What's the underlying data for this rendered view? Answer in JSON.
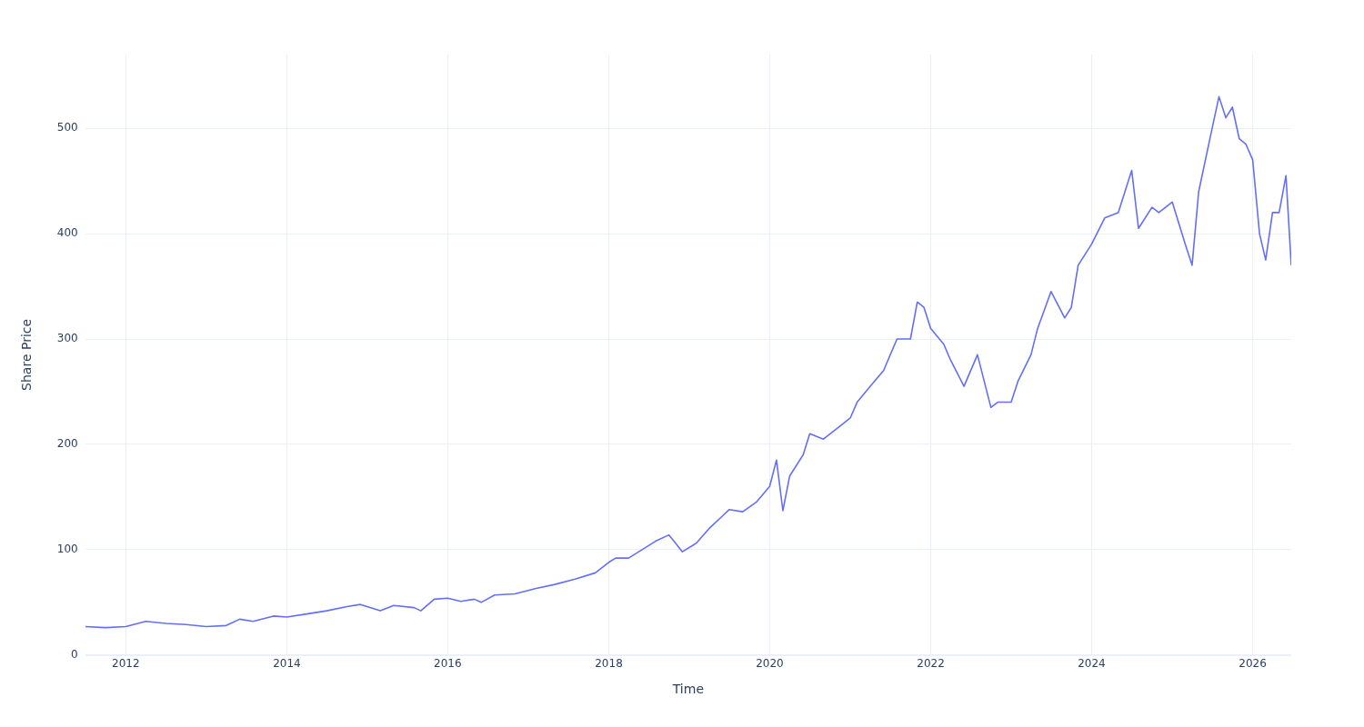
{
  "chart_data": {
    "type": "line",
    "xlabel": "Time",
    "ylabel": "Share Price",
    "x": [
      "2011-07",
      "2011-10",
      "2012-01",
      "2012-04",
      "2012-07",
      "2012-10",
      "2013-01",
      "2013-04",
      "2013-06",
      "2013-08",
      "2013-11",
      "2014-01",
      "2014-04",
      "2014-07",
      "2014-10",
      "2014-12",
      "2015-03",
      "2015-05",
      "2015-08",
      "2015-09",
      "2015-11",
      "2016-01",
      "2016-03",
      "2016-05",
      "2016-06",
      "2016-08",
      "2016-11",
      "2017-02",
      "2017-05",
      "2017-08",
      "2017-11",
      "2018-01",
      "2018-02",
      "2018-04",
      "2018-06",
      "2018-08",
      "2018-10",
      "2018-11",
      "2018-12",
      "2019-02",
      "2019-04",
      "2019-06",
      "2019-07",
      "2019-09",
      "2019-11",
      "2020-01",
      "2020-02",
      "2020-03",
      "2020-04",
      "2020-06",
      "2020-07",
      "2020-09",
      "2020-11",
      "2021-01",
      "2021-02",
      "2021-04",
      "2021-06",
      "2021-08",
      "2021-10",
      "2021-11",
      "2021-12",
      "2022-01",
      "2022-03",
      "2022-04",
      "2022-06",
      "2022-08",
      "2022-10",
      "2022-11",
      "2023-01",
      "2023-02",
      "2023-04",
      "2023-05",
      "2023-07",
      "2023-09",
      "2023-10",
      "2023-11",
      "2024-01",
      "2024-03",
      "2024-05",
      "2024-07",
      "2024-08",
      "2024-10",
      "2024-11",
      "2025-01",
      "2025-03",
      "2025-04",
      "2025-05",
      "2025-07",
      "2025-08",
      "2025-09",
      "2025-10",
      "2025-11",
      "2025-12",
      "2026-01",
      "2026-02",
      "2026-03",
      "2026-04",
      "2026-05",
      "2026-06",
      "2026-06-25"
    ],
    "series": [
      {
        "color": "#636efa",
        "values": [
          27,
          26,
          27,
          32,
          30,
          29,
          27,
          28,
          34,
          32,
          37,
          36,
          39,
          42,
          46,
          48,
          42,
          47,
          45,
          42,
          53,
          54,
          51,
          53,
          50,
          57,
          58,
          63,
          67,
          72,
          78,
          88,
          92,
          92,
          100,
          108,
          114,
          106,
          98,
          106,
          120,
          132,
          138,
          136,
          145,
          160,
          185,
          137,
          170,
          190,
          210,
          205,
          215,
          225,
          240,
          255,
          270,
          300,
          300,
          335,
          330,
          310,
          295,
          280,
          255,
          285,
          235,
          240,
          240,
          260,
          285,
          310,
          345,
          320,
          330,
          370,
          390,
          415,
          420,
          460,
          405,
          425,
          420,
          430,
          390,
          370,
          440,
          500,
          530,
          510,
          520,
          490,
          485,
          470,
          400,
          375,
          420,
          420,
          455,
          370
        ]
      }
    ],
    "xlim": [
      "2011-07",
      "2026-06-25"
    ],
    "xticks": [
      "2012",
      "2014",
      "2016",
      "2018",
      "2020",
      "2022",
      "2024",
      "2026"
    ],
    "ylim": [
      0,
      570
    ],
    "yticks": [
      0,
      100,
      200,
      300,
      400,
      500
    ],
    "grid": true,
    "legend": false,
    "marker": "none",
    "line_style": "solid"
  }
}
